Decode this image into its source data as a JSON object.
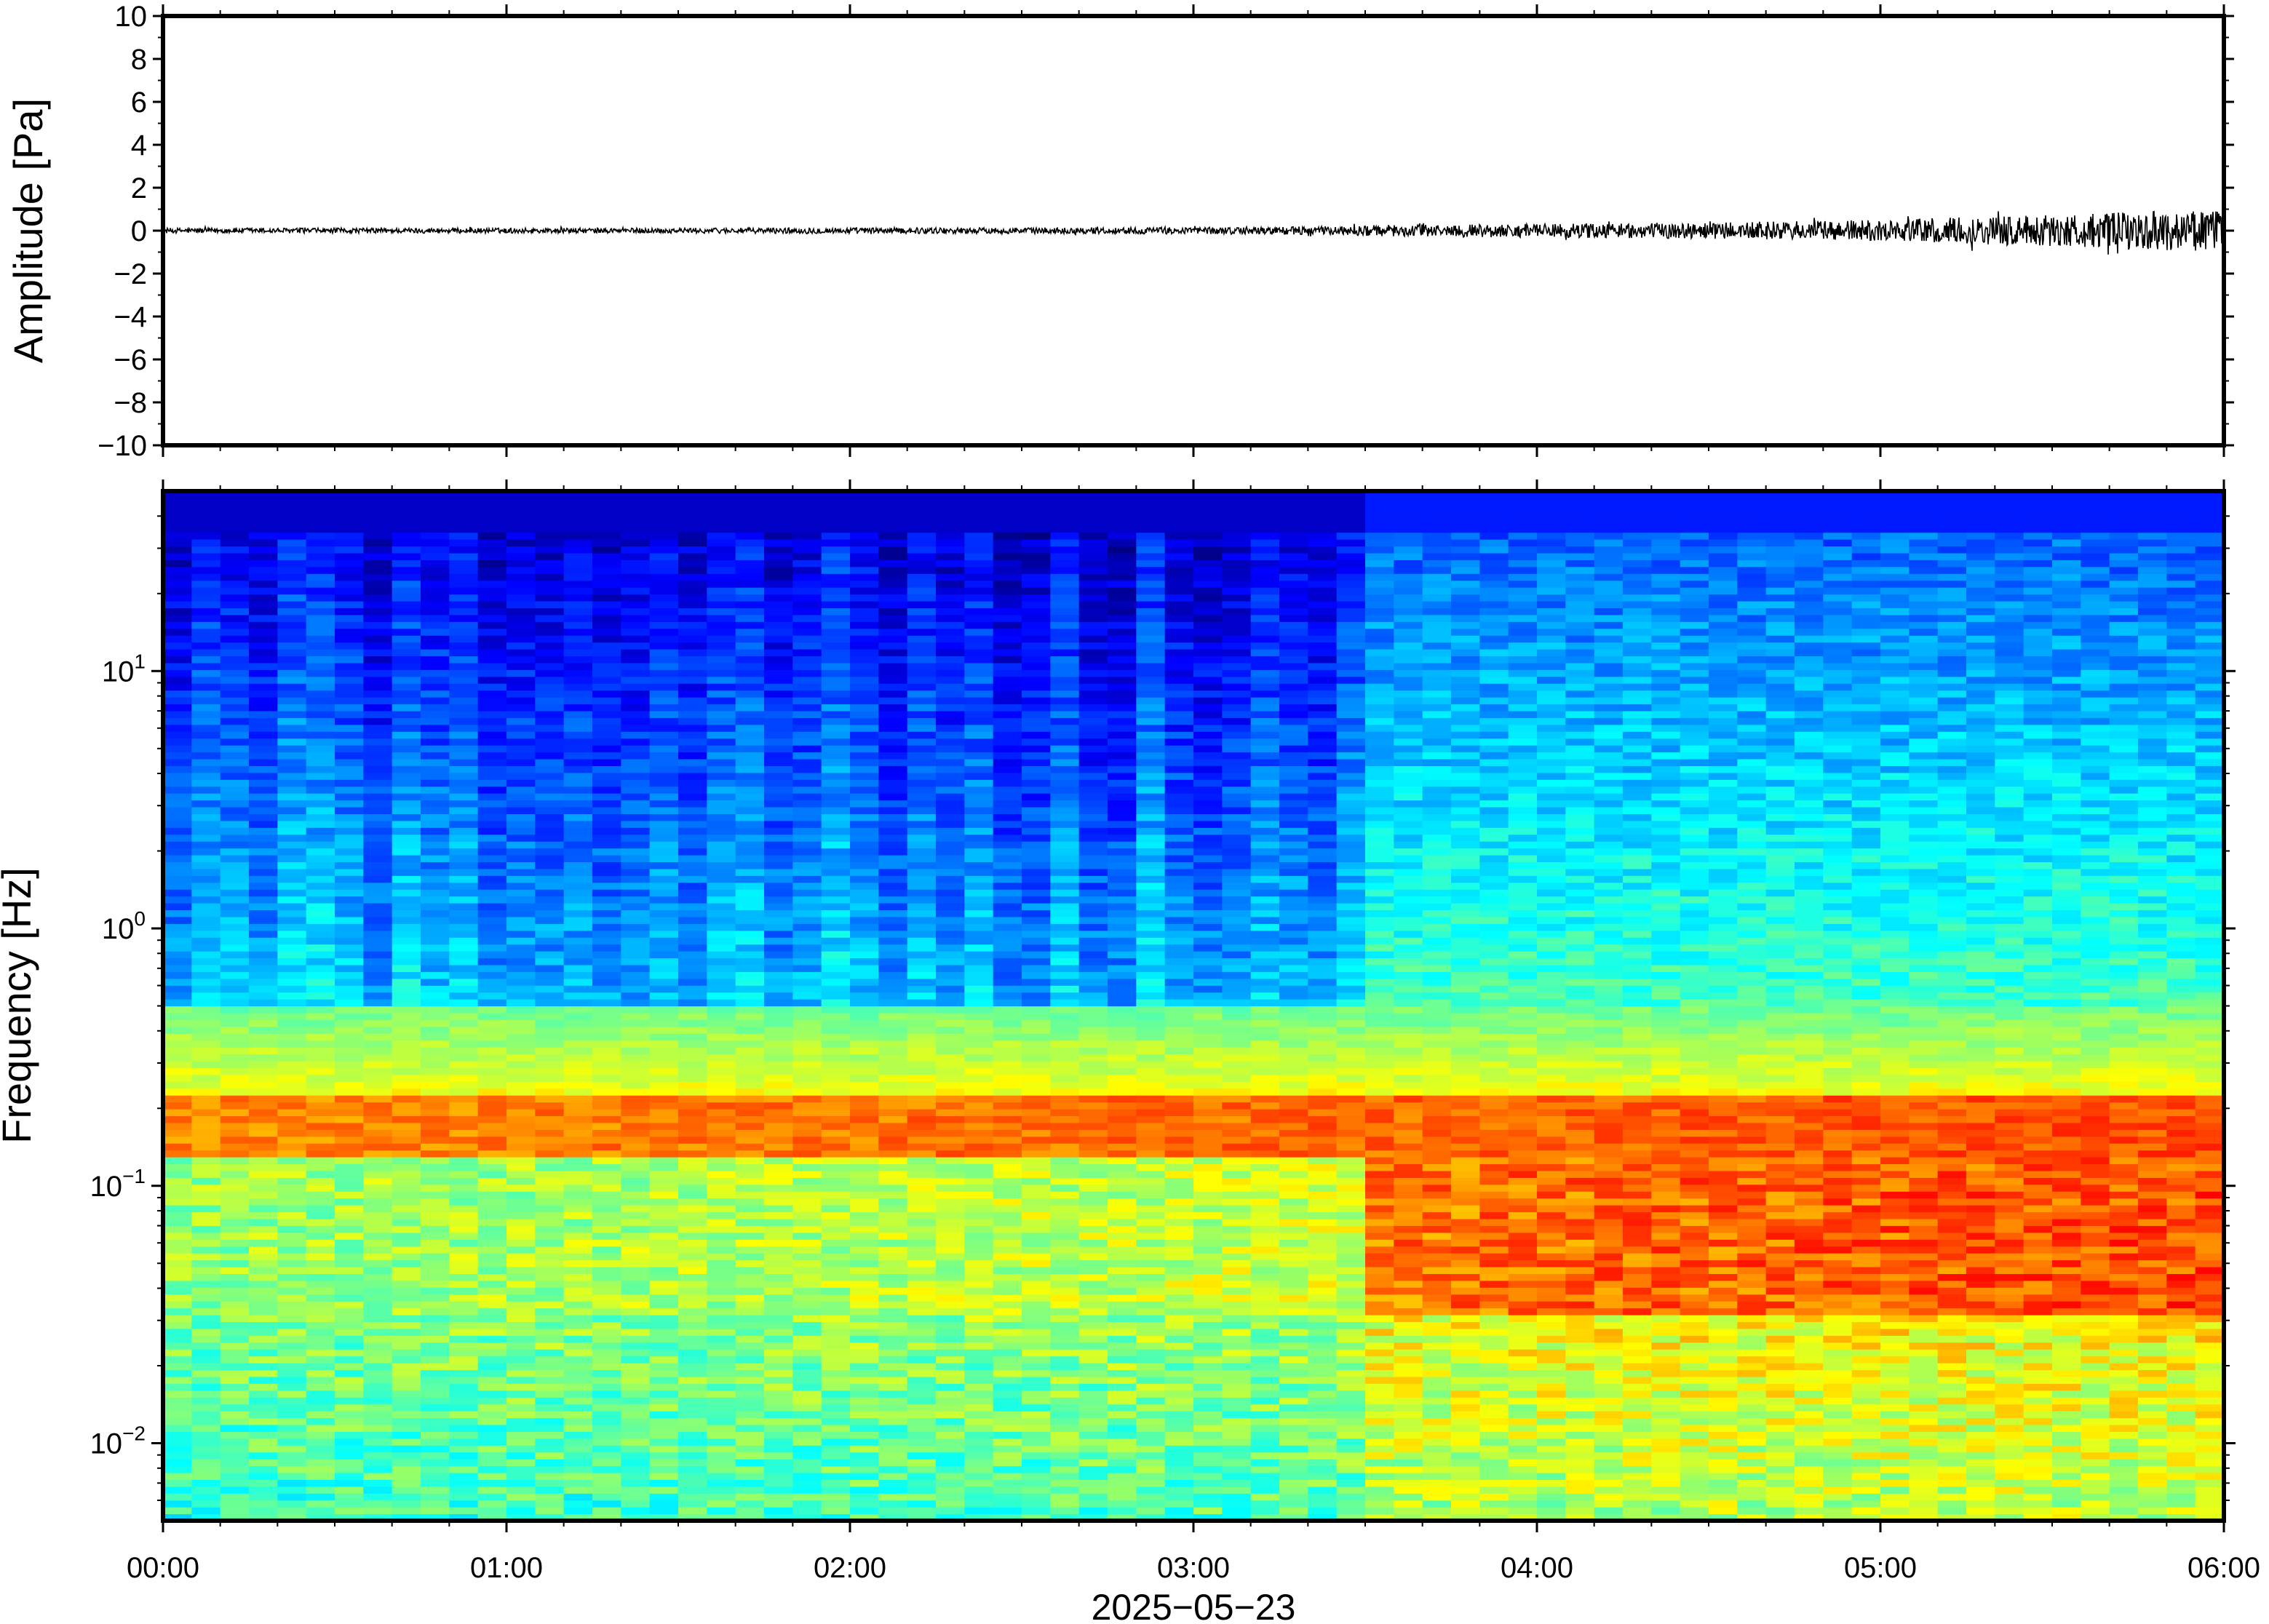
{
  "chart_data": [
    {
      "type": "line",
      "ylabel": "Amplitude [Pa]",
      "ylim": [
        -10,
        10
      ],
      "yticks": [
        10,
        8,
        6,
        4,
        2,
        0,
        -2,
        -4,
        -6,
        -8,
        -10
      ],
      "ytick_labels": [
        "10",
        "8",
        "6",
        "4",
        "2",
        "0",
        "−2",
        "−4",
        "−6",
        "−8",
        "−10"
      ],
      "xlim_hours": [
        0,
        6
      ],
      "series": [
        {
          "color": "#000000",
          "envelope_hours": [
            0,
            0.5,
            1,
            1.5,
            2,
            2.5,
            3,
            3.4,
            3.6,
            4,
            4.5,
            5,
            5.5,
            6
          ],
          "envelope_amplitude": [
            0.12,
            0.12,
            0.12,
            0.12,
            0.14,
            0.14,
            0.16,
            0.2,
            0.28,
            0.32,
            0.38,
            0.5,
            0.75,
            1.0
          ]
        }
      ],
      "grid": false
    },
    {
      "type": "heatmap",
      "ylabel": "Frequency [Hz]",
      "xlabel": "2025−05−23",
      "yscale": "log",
      "ylim": [
        0.005,
        50
      ],
      "yticks": [
        10,
        1,
        0.1,
        0.01
      ],
      "ytick_labels": [
        {
          "base": "10",
          "exp": "1"
        },
        {
          "base": "10",
          "exp": "0"
        },
        {
          "base": "10",
          "exp": "−1"
        },
        {
          "base": "10",
          "exp": "−2"
        }
      ],
      "xticks_hours": [
        0,
        1,
        2,
        3,
        4,
        5,
        6
      ],
      "xtick_labels": [
        "00:00",
        "01:00",
        "02:00",
        "03:00",
        "04:00",
        "05:00",
        "06:00"
      ],
      "colormap": "jet",
      "grid": false
    }
  ]
}
